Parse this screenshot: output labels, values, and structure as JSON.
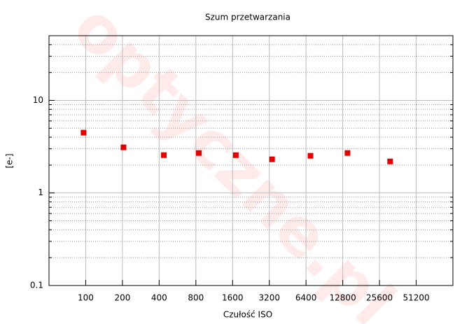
{
  "chart_data": {
    "type": "scatter",
    "title": "Szum przetwarzania",
    "x_label": "Czułość ISO",
    "y_label": "[e-]",
    "watermark": "optyczne.pl",
    "x": [
      96,
      204,
      437,
      846,
      1700,
      3370,
      6960,
      14000,
      31300
    ],
    "values": [
      4.48,
      3.11,
      2.56,
      2.7,
      2.56,
      2.31,
      2.52,
      2.7,
      2.19
    ],
    "color": "#e00000",
    "xlog": true,
    "ylog": true,
    "log_base_x": 2,
    "xlim": [
      50,
      102400
    ],
    "xticks": [
      100,
      200,
      400,
      800,
      1600,
      3200,
      6400,
      12800,
      25600,
      51200
    ],
    "ylim": [
      0.1,
      50
    ],
    "yticks": [
      0.1,
      1,
      10
    ],
    "grid": true,
    "minor_grid": true
  }
}
